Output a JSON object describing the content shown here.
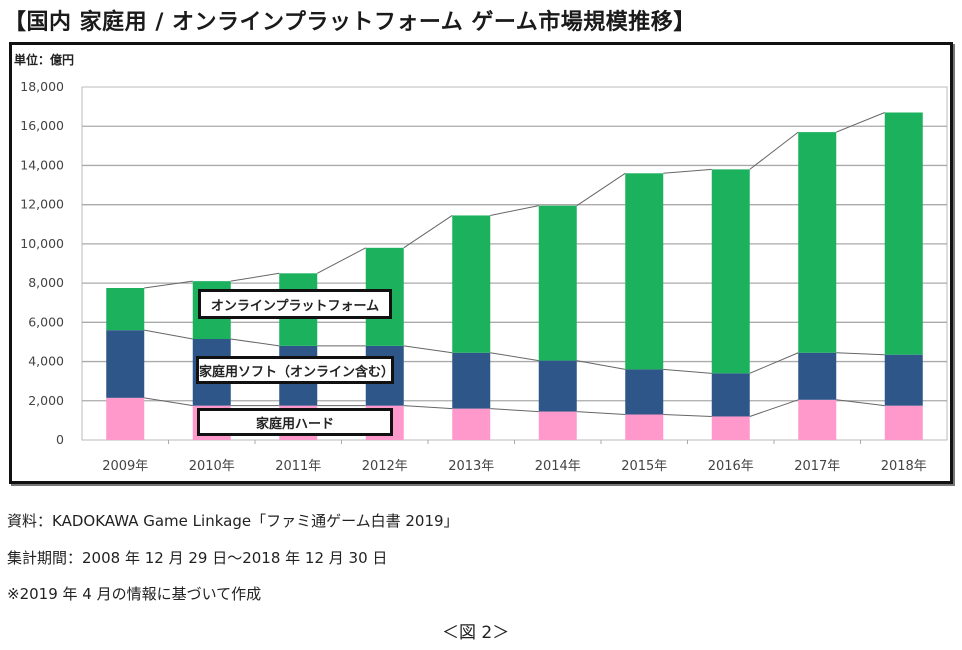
{
  "title": "【国内 家庭用 / オンラインプラットフォーム ゲーム市場規模推移】",
  "unit_label": "単位：億円",
  "notes": [
    "資料：KADOKAWA Game Linkage「ファミ通ゲーム白書 2019」",
    "集計期間：2008 年 12 月 29 日～2018 年 12 月 30 日",
    "※2019 年 4 月の情報に基づいて作成"
  ],
  "figure_label": "＜図 2＞",
  "chart_data": {
    "type": "bar",
    "stacked": true,
    "title": "国内 家庭用 / オンラインプラットフォーム ゲーム市場規模推移",
    "xlabel": "",
    "ylabel": "単位：億円",
    "ylim": [
      0,
      18000
    ],
    "yticks": [
      0,
      2000,
      4000,
      6000,
      8000,
      10000,
      12000,
      14000,
      16000,
      18000
    ],
    "ytick_labels": [
      "0",
      "2,000",
      "4,000",
      "6,000",
      "8,000",
      "10,000",
      "12,000",
      "14,000",
      "16,000",
      "18,000"
    ],
    "grid": true,
    "connector_lines": true,
    "categories": [
      "2009年",
      "2010年",
      "2011年",
      "2012年",
      "2013年",
      "2014年",
      "2015年",
      "2016年",
      "2017年",
      "2018年"
    ],
    "series": [
      {
        "name": "家庭用ハード",
        "color": "#ff99cc",
        "values": [
          2150,
          1750,
          1750,
          1750,
          1600,
          1450,
          1300,
          1200,
          2050,
          1750
        ]
      },
      {
        "name": "家庭用ソフト（オンライン含む）",
        "color": "#2f5689",
        "values": [
          3450,
          3400,
          3050,
          3050,
          2850,
          2600,
          2300,
          2200,
          2400,
          2600
        ]
      },
      {
        "name": "オンラインプラットフォーム",
        "color": "#1cb15d",
        "values": [
          2150,
          2950,
          3700,
          5000,
          7000,
          7900,
          10000,
          10400,
          11250,
          12350
        ]
      }
    ],
    "legend": [
      {
        "label": "オンラインプラットフォーム",
        "placement": "inside-center-left"
      },
      {
        "label": "家庭用ソフト（オンライン含む）",
        "placement": "inside-center-left"
      },
      {
        "label": "家庭用ハード",
        "placement": "inside-center-left"
      }
    ]
  }
}
